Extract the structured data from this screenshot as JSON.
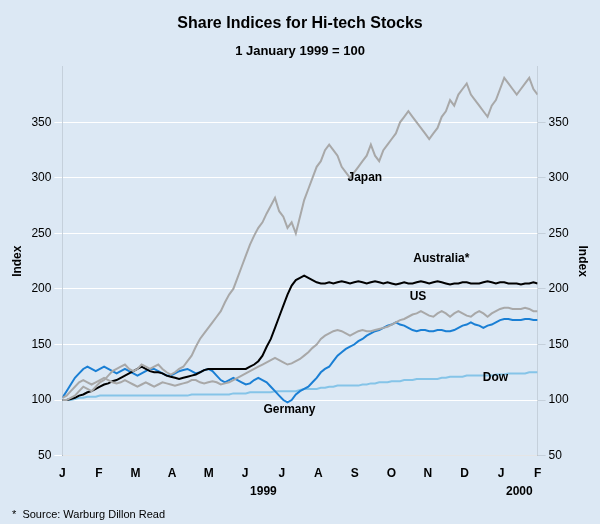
{
  "chart_data": {
    "type": "line",
    "title": "Share Indices for Hi-tech Stocks",
    "subtitle": "1 January 1999 = 100",
    "ylabel": "Index",
    "y2label": "Index",
    "footnote": "*  Source: Warburg Dillon Read",
    "background_color": "#dce8f4",
    "grid": "y",
    "legend": false,
    "xlim": [
      0,
      13
    ],
    "xticks": [
      {
        "value": 0,
        "label": "J"
      },
      {
        "value": 1,
        "label": "F"
      },
      {
        "value": 2,
        "label": "M"
      },
      {
        "value": 3,
        "label": "A"
      },
      {
        "value": 4,
        "label": "M"
      },
      {
        "value": 5,
        "label": "J"
      },
      {
        "value": 6,
        "label": "J"
      },
      {
        "value": 7,
        "label": "A"
      },
      {
        "value": 8,
        "label": "S"
      },
      {
        "value": 9,
        "label": "O"
      },
      {
        "value": 10,
        "label": "N"
      },
      {
        "value": 11,
        "label": "D"
      },
      {
        "value": 12,
        "label": "J"
      },
      {
        "value": 13,
        "label": "F"
      }
    ],
    "x_group_labels": [
      {
        "text": "1999",
        "x": 5.5
      },
      {
        "text": "2000",
        "x": 12.5
      }
    ],
    "ylim": [
      50,
      400
    ],
    "yticks": [
      50,
      100,
      150,
      200,
      250,
      300,
      350
    ],
    "y2lim": [
      50,
      400
    ],
    "y2ticks": [
      50,
      100,
      150,
      200,
      250,
      300,
      350
    ],
    "annotations": [
      {
        "text": "Japan",
        "x": 7.8,
        "y": 295
      },
      {
        "text": "Australia*",
        "x": 9.6,
        "y": 222
      },
      {
        "text": "US",
        "x": 9.5,
        "y": 188
      },
      {
        "text": "Germany",
        "x": 5.5,
        "y": 86
      },
      {
        "text": "Dow",
        "x": 11.5,
        "y": 115
      }
    ],
    "x": [
      0,
      0.114,
      0.2281,
      0.3421,
      0.4561,
      0.5702,
      0.6842,
      0.7982,
      0.9123,
      1.0263,
      1.1404,
      1.2544,
      1.3684,
      1.4825,
      1.5965,
      1.7105,
      1.8246,
      1.9386,
      2.0526,
      2.1667,
      2.2807,
      2.3947,
      2.5088,
      2.6228,
      2.7368,
      2.8509,
      2.9649,
      3.0789,
      3.193,
      3.307,
      3.4211,
      3.5351,
      3.6491,
      3.7632,
      3.8772,
      3.9912,
      4.1053,
      4.2193,
      4.3333,
      4.4474,
      4.5614,
      4.6754,
      4.7895,
      4.9035,
      5.0175,
      5.1316,
      5.2456,
      5.3596,
      5.4737,
      5.5877,
      5.7018,
      5.8158,
      5.9298,
      6.0439,
      6.1579,
      6.2719,
      6.386,
      6.5,
      6.614,
      6.7281,
      6.8421,
      6.9561,
      7.0702,
      7.1842,
      7.2982,
      7.4123,
      7.5263,
      7.6404,
      7.7544,
      7.8684,
      7.9825,
      8.0965,
      8.2105,
      8.3246,
      8.4386,
      8.5526,
      8.6667,
      8.7807,
      8.8947,
      9.0088,
      9.1228,
      9.2368,
      9.3509,
      9.4649,
      9.5789,
      9.693,
      9.807,
      9.9211,
      10.0351,
      10.1491,
      10.2632,
      10.3772,
      10.4912,
      10.6053,
      10.7193,
      10.8333,
      10.9474,
      11.0614,
      11.1754,
      11.2895,
      11.4035,
      11.5175,
      11.6316,
      11.7456,
      11.8596,
      11.9737,
      12.0877,
      12.2018,
      12.3158,
      12.4298,
      12.5439,
      12.6579,
      12.7719,
      12.886,
      13
    ],
    "series": [
      {
        "name": "Japan",
        "color": "#a8a8a8",
        "values": [
          100,
          100,
          102,
          104,
          108,
          112,
          110,
          108,
          112,
          116,
          118,
          122,
          126,
          128,
          130,
          132,
          128,
          126,
          128,
          132,
          130,
          128,
          130,
          132,
          128,
          125,
          123,
          125,
          128,
          130,
          135,
          140,
          148,
          155,
          160,
          165,
          170,
          175,
          180,
          188,
          195,
          200,
          210,
          220,
          230,
          240,
          248,
          255,
          260,
          268,
          275,
          282,
          270,
          265,
          255,
          260,
          250,
          265,
          280,
          290,
          300,
          310,
          315,
          325,
          330,
          325,
          320,
          310,
          305,
          300,
          305,
          310,
          315,
          320,
          330,
          320,
          315,
          325,
          330,
          335,
          340,
          350,
          355,
          360,
          355,
          350,
          345,
          340,
          335,
          340,
          345,
          355,
          360,
          370,
          365,
          375,
          380,
          385,
          375,
          370,
          365,
          360,
          355,
          365,
          370,
          380,
          390,
          385,
          380,
          375,
          380,
          385,
          390,
          380,
          375
        ]
      },
      {
        "name": "US",
        "color": "#a8a8a8",
        "values": [
          102,
          104,
          108,
          112,
          116,
          118,
          116,
          114,
          116,
          118,
          120,
          118,
          116,
          115,
          116,
          118,
          116,
          114,
          112,
          114,
          116,
          114,
          112,
          114,
          116,
          115,
          114,
          113,
          114,
          115,
          116,
          118,
          118,
          116,
          115,
          116,
          117,
          116,
          114,
          115,
          116,
          118,
          120,
          122,
          124,
          126,
          128,
          130,
          132,
          134,
          136,
          138,
          136,
          134,
          132,
          133,
          135,
          137,
          140,
          143,
          147,
          150,
          155,
          158,
          160,
          162,
          163,
          162,
          160,
          158,
          160,
          162,
          163,
          162,
          162,
          163,
          164,
          165,
          166,
          168,
          170,
          172,
          173,
          175,
          177,
          178,
          180,
          178,
          176,
          175,
          178,
          180,
          178,
          175,
          178,
          180,
          178,
          176,
          175,
          178,
          180,
          178,
          175,
          178,
          180,
          182,
          183,
          183,
          182,
          182,
          182,
          183,
          182,
          180,
          180
        ]
      },
      {
        "name": "Australia*",
        "color": "#000000",
        "values": [
          100,
          100,
          101,
          102,
          104,
          105,
          107,
          108,
          110,
          112,
          114,
          115,
          117,
          118,
          120,
          122,
          124,
          126,
          128,
          130,
          128,
          126,
          125,
          125,
          124,
          122,
          121,
          120,
          119,
          120,
          121,
          122,
          123,
          125,
          127,
          128,
          128,
          128,
          128,
          128,
          128,
          128,
          128,
          128,
          128,
          130,
          132,
          135,
          140,
          148,
          155,
          165,
          175,
          185,
          195,
          203,
          208,
          210,
          212,
          210,
          208,
          206,
          205,
          205,
          206,
          205,
          206,
          207,
          206,
          205,
          206,
          207,
          206,
          205,
          206,
          207,
          206,
          205,
          206,
          205,
          204,
          205,
          206,
          205,
          205,
          206,
          207,
          206,
          205,
          206,
          207,
          206,
          205,
          204,
          205,
          205,
          206,
          206,
          205,
          205,
          205,
          206,
          207,
          206,
          205,
          206,
          206,
          205,
          205,
          205,
          204,
          205,
          205,
          206,
          205
        ]
      },
      {
        "name": "Germany",
        "color": "#1a7fd4",
        "values": [
          102,
          108,
          114,
          120,
          124,
          128,
          130,
          128,
          126,
          128,
          130,
          128,
          126,
          124,
          126,
          128,
          126,
          124,
          122,
          124,
          126,
          128,
          128,
          126,
          124,
          122,
          122,
          124,
          126,
          127,
          128,
          126,
          124,
          125,
          127,
          128,
          126,
          122,
          118,
          116,
          118,
          120,
          118,
          116,
          114,
          115,
          118,
          120,
          118,
          116,
          112,
          108,
          104,
          100,
          98,
          100,
          105,
          108,
          110,
          112,
          116,
          120,
          125,
          128,
          130,
          135,
          140,
          143,
          146,
          148,
          150,
          153,
          155,
          158,
          160,
          162,
          163,
          165,
          167,
          168,
          170,
          168,
          167,
          165,
          163,
          162,
          163,
          163,
          162,
          162,
          163,
          163,
          162,
          162,
          163,
          165,
          167,
          168,
          170,
          168,
          167,
          165,
          167,
          168,
          170,
          172,
          173,
          173,
          172,
          172,
          172,
          173,
          173,
          172,
          172
        ]
      },
      {
        "name": "Dow",
        "color": "#85c4e8",
        "values": [
          100,
          100,
          100,
          101,
          102,
          102,
          103,
          103,
          103,
          104,
          104,
          104,
          104,
          104,
          104,
          104,
          104,
          104,
          104,
          104,
          104,
          104,
          104,
          104,
          104,
          104,
          104,
          104,
          104,
          104,
          104,
          105,
          105,
          105,
          105,
          105,
          105,
          105,
          105,
          105,
          105,
          106,
          106,
          106,
          106,
          107,
          107,
          107,
          107,
          107,
          107,
          108,
          108,
          108,
          108,
          108,
          108,
          109,
          110,
          110,
          110,
          110,
          111,
          111,
          112,
          112,
          113,
          113,
          113,
          113,
          113,
          113,
          114,
          114,
          115,
          115,
          116,
          116,
          116,
          117,
          117,
          117,
          118,
          118,
          118,
          119,
          119,
          119,
          119,
          119,
          119,
          120,
          120,
          121,
          121,
          121,
          121,
          122,
          122,
          122,
          122,
          122,
          122,
          122,
          123,
          123,
          123,
          124,
          124,
          124,
          124,
          124,
          125,
          125,
          125
        ]
      }
    ]
  }
}
